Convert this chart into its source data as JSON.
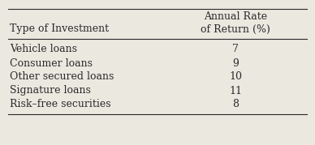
{
  "col1_header": "Type of Investment",
  "col2_header_line1": "Annual Rate",
  "col2_header_line2": "of Return (%)",
  "rows": [
    [
      "Vehicle loans",
      "7"
    ],
    [
      "Consumer loans",
      "9"
    ],
    [
      "Other secured loans",
      "10"
    ],
    [
      "Signature loans",
      "11"
    ],
    [
      "Risk–free securities",
      "8"
    ]
  ],
  "background_color": "#ebe8e0",
  "text_color": "#2a2a2a",
  "font_size": 9.0
}
